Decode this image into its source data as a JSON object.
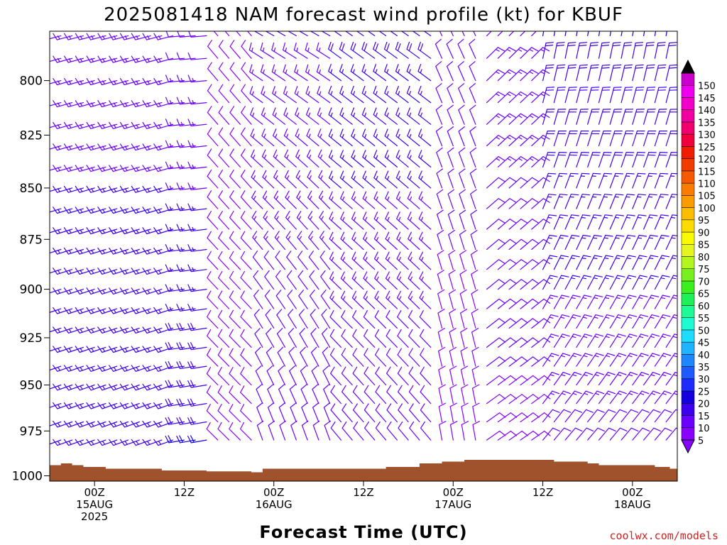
{
  "title": "2025081418 NAM forecast wind profile (kt) for KBUF",
  "credit": "coolwx.com/models",
  "chart_data": {
    "type": "wind-barb-time-height",
    "title": "2025081418 NAM forecast wind profile (kt) for KBUF",
    "xlabel": "Forecast Time (UTC)",
    "ylabel": "",
    "x_start_hours": -6,
    "x_end_hours": 78,
    "x_step_hours": 3,
    "ylim": [
      1003,
      778
    ],
    "y_levels": [
      780,
      790,
      800,
      810,
      820,
      830,
      840,
      850,
      860,
      870,
      880,
      890,
      900,
      910,
      920,
      930,
      940,
      950,
      960,
      970,
      980
    ],
    "y_ticks": [
      800,
      825,
      850,
      875,
      900,
      925,
      950,
      975,
      1000
    ],
    "x_ticks": [
      {
        "hours": 0,
        "line1": "00Z",
        "line2": "15AUG",
        "line3": "2025"
      },
      {
        "hours": 12,
        "line1": "12Z",
        "line2": "",
        "line3": ""
      },
      {
        "hours": 24,
        "line1": "00Z",
        "line2": "16AUG",
        "line3": ""
      },
      {
        "hours": 36,
        "line1": "12Z",
        "line2": "",
        "line3": ""
      },
      {
        "hours": 48,
        "line1": "00Z",
        "line2": "17AUG",
        "line3": ""
      },
      {
        "hours": 60,
        "line1": "12Z",
        "line2": "",
        "line3": ""
      },
      {
        "hours": 72,
        "line1": "00Z",
        "line2": "18AUG",
        "line3": ""
      }
    ],
    "surface_pressure": [
      {
        "h": -6,
        "p": 994
      },
      {
        "h": -4.5,
        "p": 993
      },
      {
        "h": -3,
        "p": 994
      },
      {
        "h": -1.5,
        "p": 995
      },
      {
        "h": 1.5,
        "p": 996
      },
      {
        "h": 9,
        "p": 997
      },
      {
        "h": 15,
        "p": 997.5
      },
      {
        "h": 21,
        "p": 998
      },
      {
        "h": 22.5,
        "p": 996
      },
      {
        "h": 30,
        "p": 996
      },
      {
        "h": 39,
        "p": 995
      },
      {
        "h": 43.5,
        "p": 993
      },
      {
        "h": 46.5,
        "p": 992
      },
      {
        "h": 49.5,
        "p": 991
      },
      {
        "h": 61.5,
        "p": 992
      },
      {
        "h": 66,
        "p": 993
      },
      {
        "h": 67.5,
        "p": 994
      },
      {
        "h": 75,
        "p": 995
      },
      {
        "h": 77,
        "p": 996
      },
      {
        "h": 78,
        "p": 996
      }
    ],
    "wind_regimes": [
      {
        "h_from": -6,
        "h_to": 12,
        "dir_low": 250,
        "dir_high": 255,
        "spd_low": 17,
        "spd_high": 14
      },
      {
        "h_from": 12,
        "h_to": 16,
        "dir_low": 260,
        "dir_high": 265,
        "spd_low": 20,
        "spd_high": 12
      },
      {
        "h_from": 16,
        "h_to": 22,
        "dir_low": 315,
        "dir_high": 320,
        "spd_low": 8,
        "spd_high": 9
      },
      {
        "h_from": 22,
        "h_to": 33,
        "dir_low": 340,
        "dir_high": 300,
        "spd_low": 10,
        "spd_high": 15
      },
      {
        "h_from": 33,
        "h_to": 46,
        "dir_low": 320,
        "dir_high": 305,
        "spd_low": 10,
        "spd_high": 18
      },
      {
        "h_from": 46,
        "h_to": 52,
        "dir_low": 350,
        "dir_high": 335,
        "spd_low": 8,
        "spd_high": 12
      },
      {
        "h_from": 52,
        "h_to": 60,
        "dir_low": 55,
        "dir_high": 45,
        "spd_low": 9,
        "spd_high": 14
      },
      {
        "h_from": 60,
        "h_to": 78,
        "dir_low": 40,
        "dir_high": 10,
        "spd_low": 12,
        "spd_high": 20
      }
    ],
    "colorbar": {
      "labels": [
        5,
        10,
        15,
        20,
        25,
        30,
        35,
        40,
        45,
        50,
        55,
        60,
        65,
        70,
        75,
        80,
        85,
        90,
        95,
        100,
        105,
        110,
        115,
        120,
        125,
        130,
        135,
        140,
        145,
        150
      ],
      "colors": [
        "#8800ff",
        "#6a00ff",
        "#3c00ee",
        "#1400dd",
        "#1e2cff",
        "#1e5aff",
        "#1e86ff",
        "#1eb4ff",
        "#1edcff",
        "#1efad2",
        "#1efa96",
        "#1ef05a",
        "#3cf01e",
        "#78f01e",
        "#b4f51e",
        "#e6f51e",
        "#fafa00",
        "#fadc00",
        "#fabe00",
        "#fa9b00",
        "#fa7d00",
        "#f55a00",
        "#f03c00",
        "#f01e00",
        "#f0003c",
        "#f0006e",
        "#f000a0",
        "#f000c8",
        "#ee00ee",
        "#cc00cc"
      ],
      "top_arrow_color": "#000000"
    },
    "grid": false,
    "legend": "right"
  }
}
